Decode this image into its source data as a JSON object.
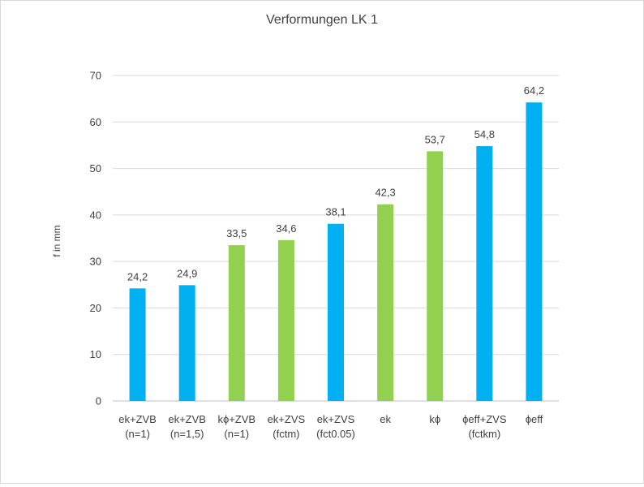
{
  "chart_data": {
    "type": "bar",
    "title": "Verformungen LK 1",
    "xlabel": "",
    "ylabel": "f in mm",
    "ylim": [
      0,
      70
    ],
    "yticks": [
      "0",
      "10",
      "20",
      "30",
      "40",
      "50",
      "60",
      "70"
    ],
    "grid": true,
    "legend": "none",
    "colors": {
      "blue": "#00b0f0",
      "green": "#92d050"
    },
    "categories": [
      [
        "ek+ZVB",
        "(n=1)"
      ],
      [
        "ek+ZVB",
        "(n=1,5)"
      ],
      [
        "kϕ+ZVB",
        "(n=1)"
      ],
      [
        "ek+ZVS",
        "(fctm)"
      ],
      [
        "ek+ZVS",
        "(fct0.05)"
      ],
      [
        "ek"
      ],
      [
        "kϕ"
      ],
      [
        "ϕeff+ZVS",
        "(fctkm)"
      ],
      [
        "ϕeff"
      ]
    ],
    "values": [
      24.2,
      24.9,
      33.5,
      34.6,
      38.1,
      42.3,
      53.7,
      54.8,
      64.2
    ],
    "value_labels": [
      "24,2",
      "24,9",
      "33,5",
      "34,6",
      "38,1",
      "42,3",
      "53,7",
      "54,8",
      "64,2"
    ],
    "bar_colors": [
      "blue",
      "blue",
      "green",
      "green",
      "blue",
      "green",
      "green",
      "blue",
      "blue"
    ]
  }
}
